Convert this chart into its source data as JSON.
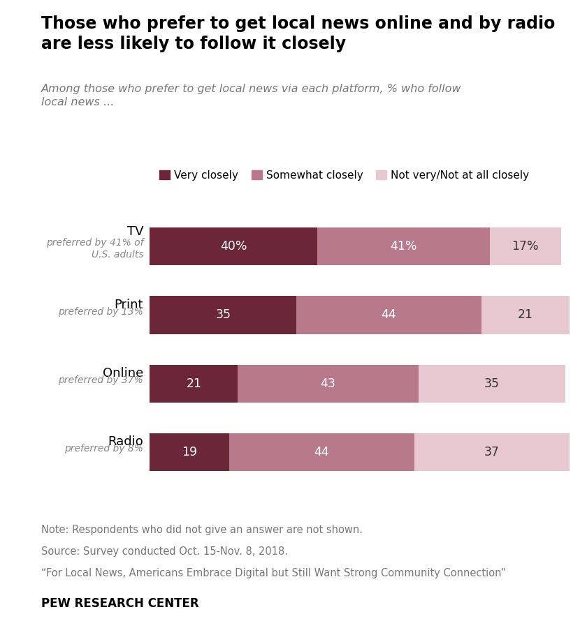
{
  "title": "Those who prefer to get local news online and by radio\nare less likely to follow it closely",
  "subtitle": "Among those who prefer to get local news via each platform, % who follow\nlocal news ...",
  "categories": [
    "TV",
    "Print",
    "Online",
    "Radio"
  ],
  "sublabels": [
    "preferred by 41% of\nU.S. adults",
    "preferred by 13%",
    "preferred by 37%",
    "preferred by 8%"
  ],
  "very_closely": [
    40,
    35,
    21,
    19
  ],
  "somewhat_closely": [
    41,
    44,
    43,
    44
  ],
  "not_very": [
    17,
    21,
    35,
    37
  ],
  "color_very": "#6b2737",
  "color_somewhat": "#b87a8a",
  "color_not_very": "#e8c8d0",
  "bar_height": 0.55,
  "legend_labels": [
    "Very closely",
    "Somewhat closely",
    "Not very/Not at all closely"
  ],
  "note1": "Note: Respondents who did not give an answer are not shown.",
  "note2": "Source: Survey conducted Oct. 15-Nov. 8, 2018.",
  "note3": "“For Local News, Americans Embrace Digital but Still Want Strong Community Connection”",
  "source_label": "PEW RESEARCH CENTER"
}
